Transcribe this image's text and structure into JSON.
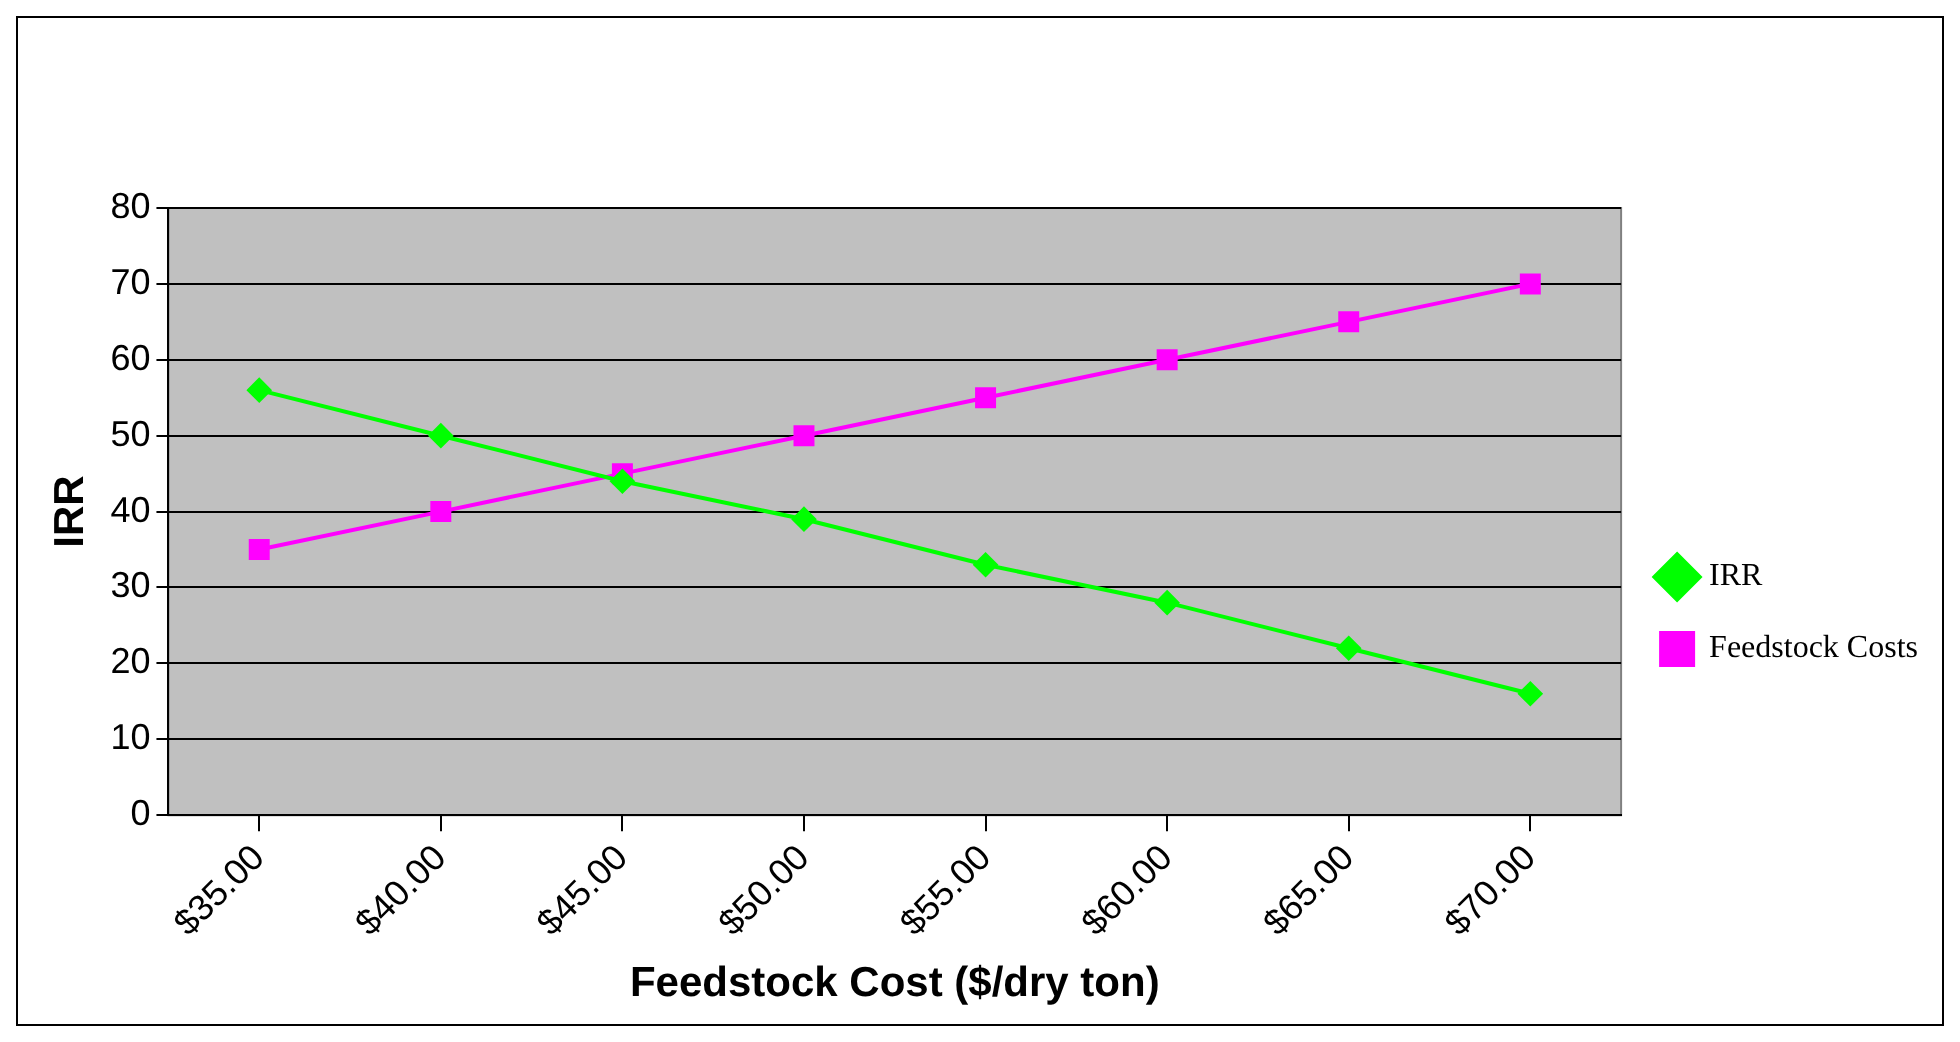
{
  "chart_data": {
    "type": "line",
    "xlabel": "Feedstock Cost ($/dry ton)",
    "ylabel": "IRR",
    "categories": [
      "$35.00",
      "$40.00",
      "$45.00",
      "$50.00",
      "$55.00",
      "$60.00",
      "$65.00",
      "$70.00"
    ],
    "series": [
      {
        "name": "IRR",
        "color": "#00ff00",
        "marker": "diamond",
        "values": [
          56,
          50,
          44,
          39,
          33,
          28,
          22,
          16
        ]
      },
      {
        "name": "Feedstock Costs",
        "color": "#ff00ff",
        "marker": "square",
        "values": [
          35,
          40,
          45,
          50,
          55,
          60,
          65,
          70
        ]
      }
    ],
    "ylim": [
      0,
      80
    ],
    "yticks": [
      0,
      10,
      20,
      30,
      40,
      50,
      60,
      70,
      80
    ],
    "grid": "y",
    "legend": "right",
    "line_style": "solid"
  }
}
